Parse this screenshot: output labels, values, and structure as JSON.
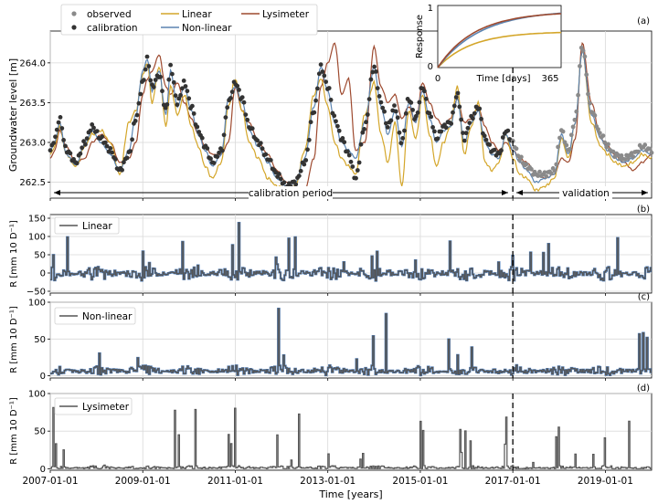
{
  "figure": {
    "xlabel": "Time [years]"
  },
  "colors": {
    "observed": "#8a8a8a",
    "calibration": "#333333",
    "linear": "#d4a62a",
    "nonlinear": "#5b84b1",
    "lysimeter": "#9e4a2f",
    "recharge": "#555555",
    "recharge_edge": "#4d7fbf",
    "grid": "#d9d9d9"
  },
  "chart_data": [
    {
      "id": "a",
      "type": "line",
      "panel_label": "(a)",
      "ylabel": "Groundwater level [m]",
      "ylim": [
        262.3,
        264.4
      ],
      "yticks": [
        262.5,
        263.0,
        263.5,
        264.0
      ],
      "ytick_labels": [
        "262.5",
        "263.0",
        "263.5",
        "264.0"
      ],
      "xlim": [
        2007.0,
        2020.0
      ],
      "xticks": [
        2007,
        2009,
        2011,
        2013,
        2015,
        2017,
        2019
      ],
      "xtick_labels": [
        "2007-01-01",
        "2009-01-01",
        "2011-01-01",
        "2013-01-01",
        "2015-01-01",
        "2017-01-01",
        "2019-01-01"
      ],
      "grid": true,
      "split_x": 2017.0,
      "annotations": {
        "calibration": "calibration period",
        "validation": "validation"
      },
      "legend": {
        "placement": "upper-left",
        "entries": [
          {
            "label": "observed",
            "marker": "dot",
            "series": "observed"
          },
          {
            "label": "calibration",
            "marker": "dot",
            "series": "calibration"
          },
          {
            "label": "Linear",
            "marker": "line",
            "series": "linear"
          },
          {
            "label": "Non-linear",
            "marker": "line",
            "series": "nonlinear"
          },
          {
            "label": "Lysimeter",
            "marker": "line",
            "series": "lysimeter"
          }
        ]
      },
      "anchors": {
        "x": [
          2007.0,
          2007.1,
          2007.2,
          2007.35,
          2007.55,
          2007.75,
          2007.9,
          2008.1,
          2008.3,
          2008.5,
          2008.7,
          2008.85,
          2009.0,
          2009.1,
          2009.2,
          2009.35,
          2009.5,
          2009.6,
          2009.75,
          2009.9,
          2010.05,
          2010.2,
          2010.35,
          2010.5,
          2010.7,
          2010.85,
          2011.0,
          2011.15,
          2011.3,
          2011.5,
          2011.7,
          2011.9,
          2012.1,
          2012.3,
          2012.5,
          2012.7,
          2012.85,
          2013.0,
          2013.15,
          2013.3,
          2013.45,
          2013.6,
          2013.8,
          2014.0,
          2014.15,
          2014.3,
          2014.45,
          2014.6,
          2014.75,
          2014.9,
          2015.05,
          2015.2,
          2015.35,
          2015.5,
          2015.65,
          2015.8,
          2015.95,
          2016.1,
          2016.25,
          2016.4,
          2016.55,
          2016.7,
          2016.85,
          2017.0,
          2017.15,
          2017.3,
          2017.5,
          2017.7,
          2017.9,
          2018.05,
          2018.2,
          2018.35,
          2018.5,
          2018.7,
          2018.9,
          2019.05,
          2019.2,
          2019.4,
          2019.6,
          2019.8,
          2020.0
        ],
        "observed": [
          262.9,
          263.05,
          263.3,
          262.9,
          262.75,
          263.0,
          263.2,
          263.05,
          262.9,
          262.65,
          262.85,
          263.3,
          263.75,
          264.05,
          263.7,
          263.85,
          263.4,
          263.95,
          263.5,
          263.75,
          263.45,
          263.15,
          262.95,
          262.75,
          262.9,
          263.5,
          263.75,
          263.55,
          263.2,
          263.0,
          262.8,
          262.6,
          262.45,
          262.5,
          262.75,
          263.4,
          263.95,
          263.7,
          263.3,
          263.05,
          262.85,
          262.55,
          263.2,
          263.95,
          263.5,
          263.2,
          263.45,
          263.0,
          263.55,
          263.3,
          263.7,
          263.35,
          263.05,
          263.2,
          263.25,
          263.6,
          263.05,
          263.3,
          263.45,
          263.05,
          262.9,
          262.85,
          263.15,
          263.0,
          262.8,
          262.7,
          262.6,
          262.6,
          262.65,
          263.15,
          262.9,
          263.3,
          264.2,
          263.4,
          263.1,
          262.95,
          262.85,
          262.8,
          262.85,
          262.95,
          262.9
        ],
        "linear": [
          262.85,
          262.95,
          263.2,
          262.85,
          262.7,
          262.95,
          263.1,
          263.15,
          263.0,
          262.6,
          263.25,
          263.4,
          263.85,
          264.0,
          263.5,
          263.95,
          263.2,
          263.7,
          263.35,
          263.6,
          263.2,
          262.95,
          262.7,
          262.55,
          262.75,
          263.45,
          263.8,
          263.4,
          263.0,
          262.8,
          262.55,
          262.45,
          262.4,
          262.45,
          262.9,
          263.6,
          263.8,
          263.45,
          263.0,
          262.8,
          262.7,
          262.6,
          263.35,
          263.75,
          263.1,
          262.75,
          263.25,
          262.45,
          263.4,
          263.05,
          263.6,
          263.1,
          262.7,
          263.0,
          263.2,
          263.7,
          262.85,
          263.2,
          263.5,
          262.75,
          262.65,
          262.75,
          263.1,
          262.8,
          262.6,
          262.55,
          262.4,
          262.45,
          262.55,
          263.05,
          262.8,
          263.25,
          264.15,
          263.25,
          262.95,
          262.85,
          262.75,
          262.7,
          262.75,
          262.85,
          262.8
        ],
        "nonlinear": [
          262.9,
          263.0,
          263.25,
          262.85,
          262.72,
          262.98,
          263.15,
          263.0,
          262.85,
          262.65,
          262.9,
          263.35,
          263.9,
          264.05,
          263.65,
          263.9,
          263.35,
          263.9,
          263.45,
          263.7,
          263.4,
          263.1,
          262.9,
          262.7,
          262.85,
          263.55,
          263.7,
          263.5,
          263.15,
          262.95,
          262.75,
          262.55,
          262.45,
          262.5,
          262.8,
          263.45,
          263.95,
          263.65,
          263.25,
          263.0,
          262.9,
          262.8,
          263.25,
          263.95,
          263.45,
          263.1,
          263.4,
          262.95,
          263.5,
          263.25,
          263.65,
          263.3,
          263.0,
          263.15,
          263.2,
          263.55,
          263.0,
          263.25,
          263.4,
          263.0,
          262.85,
          262.8,
          263.1,
          262.9,
          262.75,
          262.65,
          262.5,
          262.55,
          262.6,
          263.1,
          262.85,
          263.25,
          264.15,
          263.35,
          263.05,
          262.9,
          262.8,
          262.75,
          262.8,
          262.9,
          262.85
        ],
        "lysimeter": [
          262.8,
          262.9,
          263.15,
          262.95,
          262.75,
          262.8,
          263.0,
          263.1,
          263.0,
          262.75,
          262.8,
          263.0,
          263.6,
          263.8,
          263.9,
          264.1,
          263.7,
          263.6,
          263.75,
          263.5,
          263.3,
          263.1,
          262.95,
          262.85,
          262.85,
          263.0,
          263.7,
          263.4,
          263.25,
          263.0,
          262.85,
          262.65,
          262.5,
          262.4,
          262.4,
          262.8,
          263.7,
          264.0,
          264.25,
          263.6,
          263.8,
          262.9,
          263.0,
          264.2,
          263.7,
          263.5,
          263.6,
          263.3,
          263.45,
          263.25,
          263.75,
          263.5,
          263.3,
          263.2,
          263.3,
          263.55,
          263.25,
          263.3,
          263.45,
          263.2,
          263.0,
          262.9,
          263.0,
          262.9,
          262.8,
          262.75,
          262.6,
          262.55,
          262.6,
          262.8,
          262.75,
          263.05,
          264.25,
          263.5,
          263.05,
          262.95,
          262.85,
          262.75,
          262.65,
          262.75,
          262.85
        ]
      }
    },
    {
      "id": "inset",
      "type": "line",
      "xlabel": "Time [days]",
      "ylabel": "Response",
      "xlim": [
        0,
        400
      ],
      "ylim": [
        0,
        1.0
      ],
      "xticks": [
        0,
        365
      ],
      "xtick_labels": [
        "0",
        "365"
      ],
      "yticks": [
        0,
        1
      ],
      "ytick_labels": [
        "0",
        "1"
      ],
      "series": [
        {
          "key": "linear",
          "k": 0.58,
          "tau": 110
        },
        {
          "key": "nonlinear",
          "k": 0.93,
          "tau": 140
        },
        {
          "key": "lysimeter",
          "k": 0.9,
          "tau": 120
        }
      ]
    },
    {
      "id": "b",
      "type": "line",
      "panel_label": "(b)",
      "legend": [
        "Linear"
      ],
      "ylabel": "R [mm 10 D⁻¹]",
      "ylim": [
        -55,
        160
      ],
      "yticks": [
        -50,
        0,
        50,
        100,
        150
      ],
      "ytick_labels": [
        "−50",
        "0",
        "50",
        "100",
        "150"
      ],
      "xlim": [
        2007.0,
        2020.0
      ],
      "grid": true,
      "split_x": 2017.0,
      "series_stats": {
        "base": 0,
        "noise": 14,
        "spike_max": 150,
        "spike_prob": 0.09,
        "allow_negative": true,
        "seed": 11
      }
    },
    {
      "id": "c",
      "type": "line",
      "panel_label": "(c)",
      "legend": [
        "Non-linear"
      ],
      "ylabel": "R [mm 10 D⁻¹]",
      "ylim": [
        -3,
        100
      ],
      "yticks": [
        0,
        50,
        100
      ],
      "ytick_labels": [
        "0",
        "50",
        "100"
      ],
      "xlim": [
        2007.0,
        2020.0
      ],
      "grid": true,
      "split_x": 2017.0,
      "series_stats": {
        "base": 6,
        "noise": 5,
        "spike_max": 88,
        "spike_prob": 0.08,
        "allow_negative": false,
        "seed": 23
      }
    },
    {
      "id": "d",
      "type": "line",
      "panel_label": "(d)",
      "legend": [
        "Lysimeter"
      ],
      "ylabel": "R [mm 10 D⁻¹]",
      "ylim": [
        -2,
        100
      ],
      "yticks": [
        0,
        50,
        100
      ],
      "ytick_labels": [
        "0",
        "50",
        "100"
      ],
      "xlim": [
        2007.0,
        2020.0
      ],
      "xticks": [
        2007,
        2009,
        2011,
        2013,
        2015,
        2017,
        2019
      ],
      "xtick_labels": [
        "2007-01-01",
        "2009-01-01",
        "2011-01-01",
        "2013-01-01",
        "2015-01-01",
        "2017-01-01",
        "2019-01-01"
      ],
      "grid": true,
      "split_x": 2017.0,
      "series_stats": {
        "base": 1,
        "noise": 2,
        "spike_max": 100,
        "spike_prob": 0.12,
        "allow_negative": false,
        "seed": 37
      }
    }
  ]
}
